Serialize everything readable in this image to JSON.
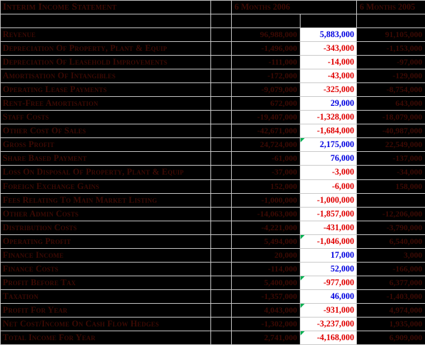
{
  "title": "Interim Income Statement",
  "columns": {
    "col_2006": "6 Months 2006",
    "col_2005": "6 Months 2005"
  },
  "colors": {
    "background": "#000000",
    "gridline": "#c9c9c9",
    "dark_text": "#3c0a04",
    "diff_positive": "#0000e0",
    "diff_negative": "#e00000",
    "diff_cell_background": "#ffffff",
    "flag_triangle": "#00b050"
  },
  "rows": [
    {
      "label": "Revenue",
      "v2006": "96,988,000",
      "diff": "5,883,000",
      "diff_color": "pos",
      "v2005": "91,105,000",
      "flag": false
    },
    {
      "label": "Depreciation Of Property, Plant & Equip",
      "v2006": "-1,496,000",
      "diff": "-343,000",
      "diff_color": "neg",
      "v2005": "-1,153,000",
      "flag": false
    },
    {
      "label": "Depreciation Of Leasehold Improvements",
      "v2006": "-111,000",
      "diff": "-14,000",
      "diff_color": "neg",
      "v2005": "-97,000",
      "flag": false
    },
    {
      "label": "Amortisation Of Intangibles",
      "v2006": "-172,000",
      "diff": "-43,000",
      "diff_color": "neg",
      "v2005": "-129,000",
      "flag": false
    },
    {
      "label": "Operating Lease Payments",
      "v2006": "-9,079,000",
      "diff": "-325,000",
      "diff_color": "neg",
      "v2005": "-8,754,000",
      "flag": false
    },
    {
      "label": "Rent-Free Amortisation",
      "v2006": "672,000",
      "diff": "29,000",
      "diff_color": "pos",
      "v2005": "643,000",
      "flag": false
    },
    {
      "label": "Staff Costs",
      "v2006": "-19,407,000",
      "diff": "-1,328,000",
      "diff_color": "neg",
      "v2005": "-18,079,000",
      "flag": false
    },
    {
      "label": "Other Cost Of Sales",
      "v2006": "-42,671,000",
      "diff": "-1,684,000",
      "diff_color": "neg",
      "v2005": "-40,987,000",
      "flag": false
    },
    {
      "label": "Gross Profit",
      "v2006": "24,724,000",
      "diff": "2,175,000",
      "diff_color": "pos",
      "v2005": "22,549,000",
      "flag": true
    },
    {
      "label": "Share Based Payment",
      "v2006": "-61,000",
      "diff": "76,000",
      "diff_color": "pos",
      "v2005": "-137,000",
      "flag": false
    },
    {
      "label": "Loss On Disposal Of Property, Plant & Equip",
      "v2006": "-37,000",
      "diff": "-3,000",
      "diff_color": "neg",
      "v2005": "-34,000",
      "flag": false
    },
    {
      "label": "Foreign Exchange Gains",
      "v2006": "152,000",
      "diff": "-6,000",
      "diff_color": "neg",
      "v2005": "158,000",
      "flag": false
    },
    {
      "label": "Fees Relating To Main Market Listing",
      "v2006": "-1,000,000",
      "diff": "-1,000,000",
      "diff_color": "neg",
      "v2005": "",
      "flag": false
    },
    {
      "label": "Other Admin Costs",
      "v2006": "-14,063,000",
      "diff": "-1,857,000",
      "diff_color": "neg",
      "v2005": "-12,206,000",
      "flag": false
    },
    {
      "label": "Distribution Costs",
      "v2006": "-4,221,000",
      "diff": "-431,000",
      "diff_color": "neg",
      "v2005": "-3,790,000",
      "flag": false
    },
    {
      "label": "Operating Profit",
      "v2006": "5,494,000",
      "diff": "-1,046,000",
      "diff_color": "neg",
      "v2005": "6,540,000",
      "flag": true
    },
    {
      "label": "Finance Income",
      "v2006": "20,000",
      "diff": "17,000",
      "diff_color": "pos",
      "v2005": "3,000",
      "flag": false
    },
    {
      "label": "Finance Costs",
      "v2006": "-114,000",
      "diff": "52,000",
      "diff_color": "pos",
      "v2005": "-166,000",
      "flag": false
    },
    {
      "label": "Profit Before Tax",
      "v2006": "5,400,000",
      "diff": "-977,000",
      "diff_color": "neg",
      "v2005": "6,377,000",
      "flag": true
    },
    {
      "label": "Taxation",
      "v2006": "-1,357,000",
      "diff": "46,000",
      "diff_color": "pos",
      "v2005": "-1,403,000",
      "flag": false
    },
    {
      "label": "Profit For Year",
      "v2006": "4,043,000",
      "diff": "-931,000",
      "diff_color": "neg",
      "v2005": "4,974,000",
      "flag": true
    },
    {
      "label": "Net Cost/Income On Cash Flow Hedges",
      "v2006": "-1,302,000",
      "diff": "-3,237,000",
      "diff_color": "neg",
      "v2005": "1,935,000",
      "flag": false
    },
    {
      "label": "Total Income For Year",
      "v2006": "2,741,000",
      "diff": "-4,168,000",
      "diff_color": "neg",
      "v2005": "6,909,000",
      "flag": true
    }
  ]
}
